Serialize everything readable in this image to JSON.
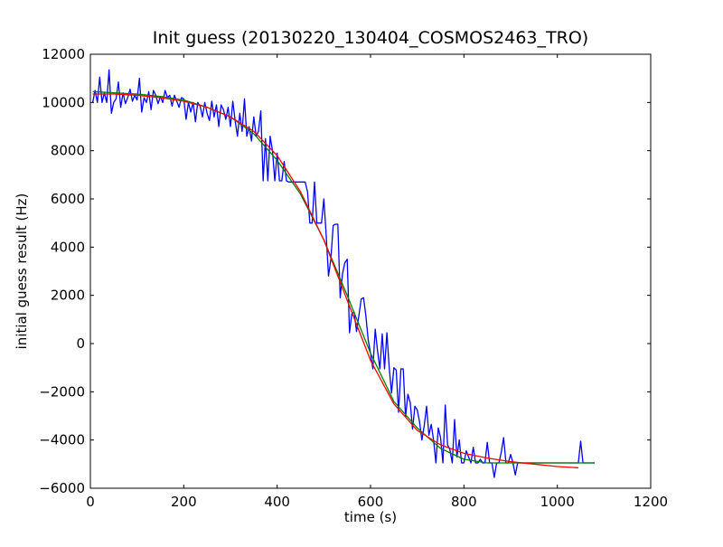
{
  "chart_data": {
    "type": "line",
    "title": "Init guess (20130220_130404_COSMOS2463_TRO)",
    "xlabel": "time (s)",
    "ylabel": "initial guess result (Hz)",
    "xlim": [
      0,
      1200
    ],
    "ylim": [
      -6000,
      12000
    ],
    "xticks": [
      0,
      200,
      400,
      600,
      800,
      1000,
      1200
    ],
    "yticks": [
      -6000,
      -4000,
      -2000,
      0,
      2000,
      4000,
      6000,
      8000,
      10000,
      12000
    ],
    "xtick_labels": [
      "0",
      "200",
      "400",
      "600",
      "800",
      "1000",
      "1200"
    ],
    "ytick_labels": [
      "−6000",
      "−4000",
      "−2000",
      "0",
      "2000",
      "4000",
      "6000",
      "8000",
      "10000",
      "12000"
    ],
    "grid": false,
    "series": [
      {
        "color": "#0000ff",
        "points": [
          [
            5,
            10000
          ],
          [
            10,
            10500
          ],
          [
            15,
            10000
          ],
          [
            20,
            11050
          ],
          [
            25,
            10000
          ],
          [
            30,
            10400
          ],
          [
            35,
            10000
          ],
          [
            40,
            11350
          ],
          [
            45,
            9550
          ],
          [
            50,
            10000
          ],
          [
            55,
            10150
          ],
          [
            60,
            10850
          ],
          [
            65,
            9800
          ],
          [
            70,
            10400
          ],
          [
            75,
            9950
          ],
          [
            80,
            10200
          ],
          [
            85,
            10550
          ],
          [
            90,
            10050
          ],
          [
            95,
            10300
          ],
          [
            100,
            10100
          ],
          [
            105,
            11000
          ],
          [
            110,
            9600
          ],
          [
            115,
            10200
          ],
          [
            120,
            10000
          ],
          [
            125,
            10450
          ],
          [
            130,
            9700
          ],
          [
            135,
            10500
          ],
          [
            140,
            10300
          ],
          [
            145,
            9950
          ],
          [
            150,
            10250
          ],
          [
            155,
            10000
          ],
          [
            160,
            10500
          ],
          [
            165,
            10200
          ],
          [
            170,
            10300
          ],
          [
            175,
            9850
          ],
          [
            180,
            10300
          ],
          [
            185,
            10050
          ],
          [
            190,
            9800
          ],
          [
            195,
            10200
          ],
          [
            200,
            10150
          ],
          [
            205,
            9300
          ],
          [
            210,
            10000
          ],
          [
            215,
            9600
          ],
          [
            220,
            10000
          ],
          [
            225,
            9200
          ],
          [
            230,
            10000
          ],
          [
            235,
            9850
          ],
          [
            240,
            9400
          ],
          [
            245,
            10000
          ],
          [
            250,
            9550
          ],
          [
            255,
            9250
          ],
          [
            260,
            10050
          ],
          [
            265,
            9400
          ],
          [
            270,
            9900
          ],
          [
            275,
            9000
          ],
          [
            280,
            9900
          ],
          [
            285,
            9700
          ],
          [
            290,
            9300
          ],
          [
            295,
            9800
          ],
          [
            300,
            9000
          ],
          [
            305,
            10050
          ],
          [
            310,
            9250
          ],
          [
            315,
            8600
          ],
          [
            320,
            9550
          ],
          [
            325,
            8800
          ],
          [
            330,
            10150
          ],
          [
            335,
            8600
          ],
          [
            340,
            9000
          ],
          [
            345,
            8400
          ],
          [
            350,
            9400
          ],
          [
            355,
            8600
          ],
          [
            360,
            8800
          ],
          [
            365,
            9650
          ],
          [
            370,
            6750
          ],
          [
            375,
            8500
          ],
          [
            380,
            6750
          ],
          [
            385,
            8600
          ],
          [
            390,
            8000
          ],
          [
            395,
            6750
          ],
          [
            400,
            7900
          ],
          [
            405,
            6750
          ],
          [
            410,
            6750
          ],
          [
            415,
            7550
          ],
          [
            420,
            6750
          ],
          [
            425,
            6700
          ],
          [
            430,
            6700
          ],
          [
            435,
            6700
          ],
          [
            440,
            6700
          ],
          [
            445,
            6700
          ],
          [
            450,
            6700
          ],
          [
            455,
            6700
          ],
          [
            460,
            6700
          ],
          [
            465,
            6300
          ],
          [
            470,
            5000
          ],
          [
            475,
            5000
          ],
          [
            480,
            6700
          ],
          [
            485,
            5000
          ],
          [
            490,
            5000
          ],
          [
            495,
            5000
          ],
          [
            500,
            6000
          ],
          [
            505,
            4500
          ],
          [
            510,
            2800
          ],
          [
            515,
            3500
          ],
          [
            520,
            4900
          ],
          [
            525,
            4950
          ],
          [
            530,
            4950
          ],
          [
            535,
            1900
          ],
          [
            540,
            2900
          ],
          [
            545,
            3350
          ],
          [
            550,
            3500
          ],
          [
            555,
            450
          ],
          [
            560,
            1250
          ],
          [
            565,
            1300
          ],
          [
            570,
            500
          ],
          [
            575,
            1150
          ],
          [
            580,
            1850
          ],
          [
            585,
            1900
          ],
          [
            590,
            1150
          ],
          [
            595,
            150
          ],
          [
            600,
            -400
          ],
          [
            605,
            -1050
          ],
          [
            610,
            600
          ],
          [
            615,
            -300
          ],
          [
            620,
            -1050
          ],
          [
            625,
            400
          ],
          [
            630,
            -1050
          ],
          [
            635,
            450
          ],
          [
            640,
            -1000
          ],
          [
            645,
            -2050
          ],
          [
            650,
            -1000
          ],
          [
            655,
            -1100
          ],
          [
            660,
            -2850
          ],
          [
            665,
            -1050
          ],
          [
            670,
            -1050
          ],
          [
            675,
            -3050
          ],
          [
            680,
            -2100
          ],
          [
            685,
            -2450
          ],
          [
            690,
            -3550
          ],
          [
            695,
            -2600
          ],
          [
            700,
            -2750
          ],
          [
            705,
            -3250
          ],
          [
            710,
            -4000
          ],
          [
            715,
            -3400
          ],
          [
            720,
            -2600
          ],
          [
            725,
            -3800
          ],
          [
            730,
            -3350
          ],
          [
            735,
            -4000
          ],
          [
            740,
            -4950
          ],
          [
            745,
            -3500
          ],
          [
            750,
            -3900
          ],
          [
            755,
            -4950
          ],
          [
            760,
            -2550
          ],
          [
            765,
            -4200
          ],
          [
            770,
            -4400
          ],
          [
            775,
            -4950
          ],
          [
            780,
            -3150
          ],
          [
            785,
            -4700
          ],
          [
            790,
            -4000
          ],
          [
            795,
            -4950
          ],
          [
            800,
            -4950
          ],
          [
            805,
            -4450
          ],
          [
            810,
            -4700
          ],
          [
            815,
            -4950
          ],
          [
            820,
            -4300
          ],
          [
            825,
            -4950
          ],
          [
            830,
            -4950
          ],
          [
            835,
            -4800
          ],
          [
            840,
            -4950
          ],
          [
            845,
            -4950
          ],
          [
            850,
            -4100
          ],
          [
            855,
            -4950
          ],
          [
            860,
            -4950
          ],
          [
            865,
            -5550
          ],
          [
            870,
            -4950
          ],
          [
            875,
            -4950
          ],
          [
            880,
            -4500
          ],
          [
            885,
            -3900
          ],
          [
            890,
            -4950
          ],
          [
            895,
            -4950
          ],
          [
            900,
            -4600
          ],
          [
            905,
            -4950
          ],
          [
            910,
            -5450
          ],
          [
            915,
            -4950
          ],
          [
            920,
            -4950
          ],
          [
            930,
            -4950
          ],
          [
            940,
            -4950
          ],
          [
            950,
            -4950
          ],
          [
            960,
            -4950
          ],
          [
            970,
            -4950
          ],
          [
            980,
            -4950
          ],
          [
            990,
            -4950
          ],
          [
            1000,
            -4950
          ],
          [
            1010,
            -4950
          ],
          [
            1020,
            -4950
          ],
          [
            1030,
            -4950
          ],
          [
            1040,
            -4950
          ],
          [
            1045,
            -4950
          ],
          [
            1050,
            -4050
          ],
          [
            1055,
            -4950
          ],
          [
            1060,
            -4950
          ],
          [
            1070,
            -4950
          ],
          [
            1080,
            -4950
          ]
        ]
      },
      {
        "color": "#008000",
        "points": [
          [
            5,
            10450
          ],
          [
            50,
            10400
          ],
          [
            100,
            10350
          ],
          [
            150,
            10250
          ],
          [
            200,
            10100
          ],
          [
            250,
            9800
          ],
          [
            300,
            9400
          ],
          [
            350,
            8700
          ],
          [
            400,
            7600
          ],
          [
            450,
            6200
          ],
          [
            500,
            4300
          ],
          [
            550,
            2000
          ],
          [
            600,
            -400
          ],
          [
            650,
            -2400
          ],
          [
            700,
            -3500
          ],
          [
            750,
            -4350
          ],
          [
            800,
            -4800
          ],
          [
            850,
            -4950
          ],
          [
            900,
            -4950
          ],
          [
            950,
            -4950
          ],
          [
            1000,
            -4950
          ],
          [
            1050,
            -4950
          ],
          [
            1080,
            -4950
          ]
        ]
      },
      {
        "color": "#ff0000",
        "points": [
          [
            5,
            10350
          ],
          [
            50,
            10350
          ],
          [
            100,
            10300
          ],
          [
            150,
            10200
          ],
          [
            200,
            10050
          ],
          [
            250,
            9800
          ],
          [
            300,
            9400
          ],
          [
            350,
            8800
          ],
          [
            400,
            7800
          ],
          [
            450,
            6300
          ],
          [
            500,
            4300
          ],
          [
            550,
            1800
          ],
          [
            600,
            -700
          ],
          [
            650,
            -2500
          ],
          [
            700,
            -3600
          ],
          [
            750,
            -4200
          ],
          [
            800,
            -4550
          ],
          [
            850,
            -4750
          ],
          [
            900,
            -4900
          ],
          [
            950,
            -5000
          ],
          [
            1000,
            -5100
          ],
          [
            1045,
            -5150
          ]
        ]
      }
    ]
  }
}
